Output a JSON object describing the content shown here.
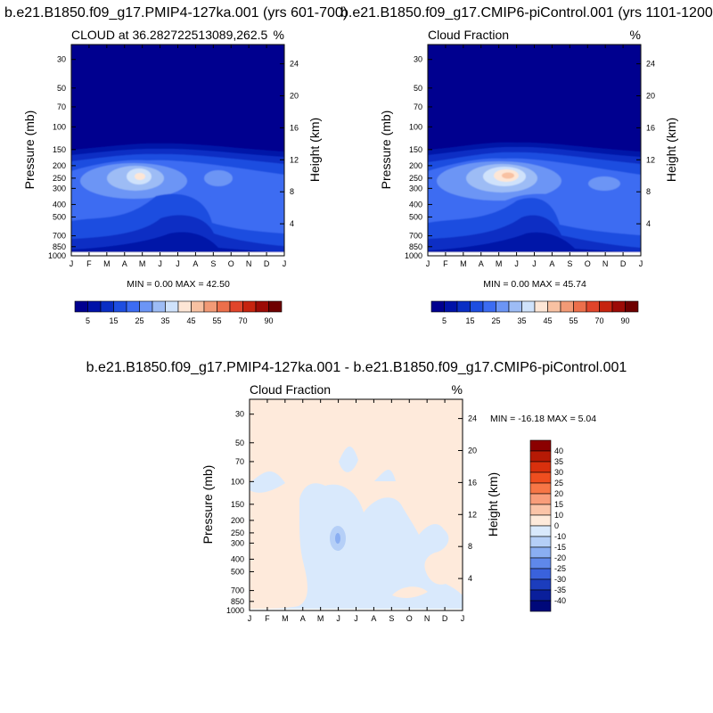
{
  "chart_data": [
    {
      "type": "heatmap",
      "title": "b.e21.B1850.f09_g17.PMIP4-127ka.001 (yrs 601-700)",
      "subtitle": "CLOUD at 36.282722513089,262.5",
      "units": "%",
      "xlabel": "",
      "ylabel": "Pressure (mb)",
      "ylabel_right": "Height (km)",
      "x_ticks": [
        "J",
        "F",
        "M",
        "A",
        "M",
        "J",
        "J",
        "A",
        "S",
        "O",
        "N",
        "D",
        "J"
      ],
      "pressure_ticks": [
        "30",
        "50",
        "70",
        "100",
        "150",
        "200",
        "250",
        "300",
        "400",
        "500",
        "700",
        "850",
        "1000"
      ],
      "height_ticks": [
        "24",
        "20",
        "16",
        "12",
        "8",
        "4"
      ],
      "stats": "MIN =   0.00 MAX =  42.50",
      "colorbar_labels": [
        "5",
        "15",
        "25",
        "35",
        "45",
        "55",
        "70",
        "90"
      ],
      "colorbar_colors": [
        "#00008f",
        "#0012a8",
        "#0a2ec4",
        "#1e4ee0",
        "#3c6cf2",
        "#6c95f5",
        "#9dbcf5",
        "#cfe2fb",
        "#fde6d6",
        "#f8c1a2",
        "#f29a76",
        "#ec6f4b",
        "#e0452b",
        "#c6240f",
        "#9c0b06",
        "#6e0000"
      ],
      "levels": [
        5,
        10,
        15,
        20,
        25,
        30,
        35,
        40,
        45,
        50,
        55,
        60,
        70,
        80,
        90
      ],
      "hotspot": {
        "month": 3.6,
        "height_km": 10.6,
        "peak": 42.5
      }
    },
    {
      "type": "heatmap",
      "title": "b.e21.B1850.f09_g17.CMIP6-piControl.001 (yrs 1101-1200)",
      "subtitle": "Cloud Fraction",
      "units": "%",
      "xlabel": "",
      "ylabel": "Pressure (mb)",
      "ylabel_right": "Height (km)",
      "x_ticks": [
        "J",
        "F",
        "M",
        "A",
        "M",
        "J",
        "J",
        "A",
        "S",
        "O",
        "N",
        "D",
        "J"
      ],
      "pressure_ticks": [
        "30",
        "50",
        "70",
        "100",
        "150",
        "200",
        "250",
        "300",
        "400",
        "500",
        "700",
        "850",
        "1000"
      ],
      "height_ticks": [
        "24",
        "20",
        "16",
        "12",
        "8",
        "4"
      ],
      "stats": "MIN =   0.00 MAX =  45.74",
      "colorbar_labels": [
        "5",
        "15",
        "25",
        "35",
        "45",
        "55",
        "70",
        "90"
      ],
      "colorbar_colors": [
        "#00008f",
        "#0012a8",
        "#0a2ec4",
        "#1e4ee0",
        "#3c6cf2",
        "#6c95f5",
        "#9dbcf5",
        "#cfe2fb",
        "#fde6d6",
        "#f8c1a2",
        "#f29a76",
        "#ec6f4b",
        "#e0452b",
        "#c6240f",
        "#9c0b06",
        "#6e0000"
      ],
      "levels": [
        5,
        10,
        15,
        20,
        25,
        30,
        35,
        40,
        45,
        50,
        55,
        60,
        70,
        80,
        90
      ],
      "hotspot": {
        "month": 4.0,
        "height_km": 10.5,
        "peak": 45.74
      }
    },
    {
      "type": "heatmap",
      "title": "b.e21.B1850.f09_g17.PMIP4-127ka.001 - b.e21.B1850.f09_g17.CMIP6-piControl.001",
      "subtitle": "Cloud Fraction",
      "units": "%",
      "xlabel": "",
      "ylabel": "Pressure (mb)",
      "ylabel_right": "Height (km)",
      "x_ticks": [
        "J",
        "F",
        "M",
        "A",
        "M",
        "J",
        "J",
        "A",
        "S",
        "O",
        "N",
        "D",
        "J"
      ],
      "pressure_ticks": [
        "30",
        "50",
        "70",
        "100",
        "150",
        "200",
        "250",
        "300",
        "400",
        "500",
        "700",
        "850",
        "1000"
      ],
      "height_ticks": [
        "24",
        "20",
        "16",
        "12",
        "8",
        "4"
      ],
      "stats": "MIN = -16.18 MAX =   5.04",
      "colorbar_labels": [
        "40",
        "35",
        "30",
        "25",
        "20",
        "15",
        "10",
        "0",
        "-10",
        "-15",
        "-20",
        "-25",
        "-30",
        "-35",
        "-40"
      ],
      "colorbar_colors": [
        "#8b0000",
        "#b61a05",
        "#d9300d",
        "#ef4e1f",
        "#f77646",
        "#f99d7a",
        "#fbc4a8",
        "#feeadb",
        "#d9e9fc",
        "#b5cff7",
        "#8aaef2",
        "#5f88ea",
        "#3a62dc",
        "#1c3dbd",
        "#0a1f9b",
        "#00087a"
      ],
      "min": -16.18,
      "max": 5.04
    }
  ]
}
